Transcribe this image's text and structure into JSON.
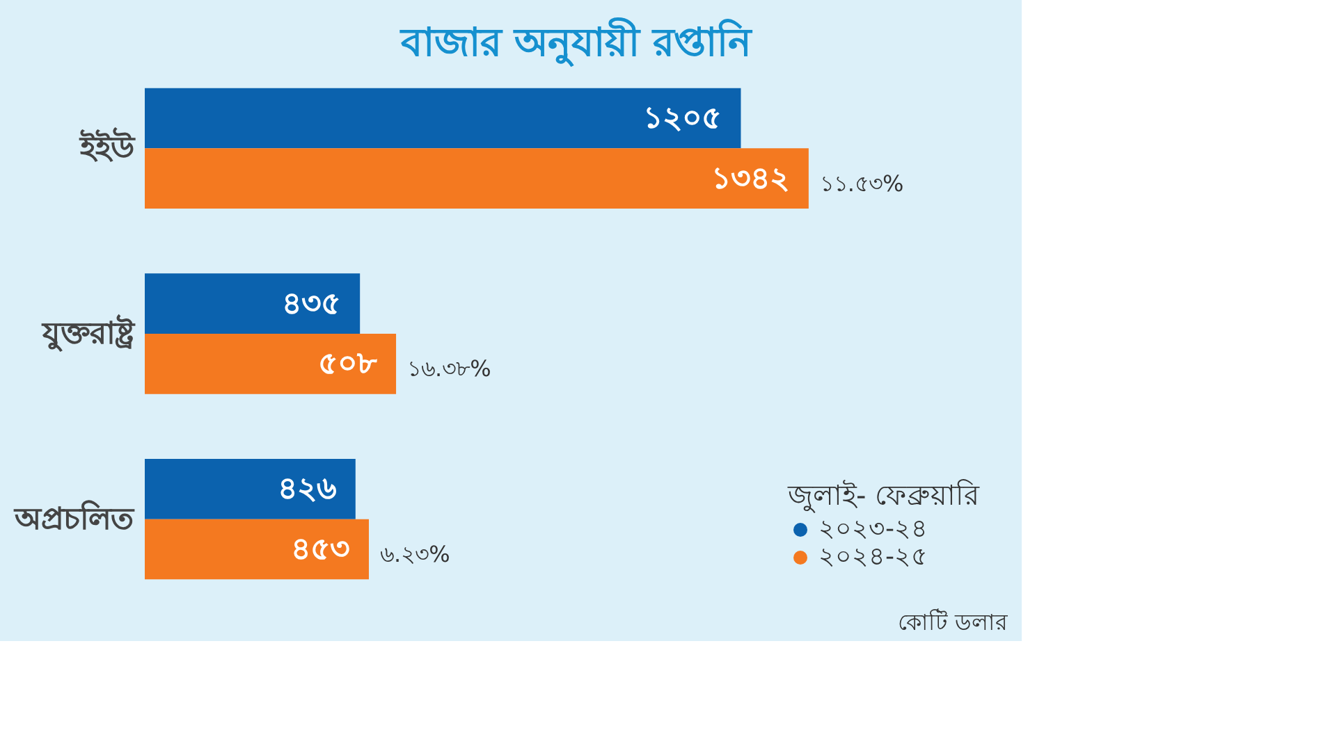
{
  "chart_data": {
    "type": "bar",
    "orientation": "horizontal",
    "title": "বাজার অনুযায়ী রপ্তানি",
    "categories": [
      "ইইউ",
      "যুক্তরাষ্ট্র",
      "অপ্রচলিত"
    ],
    "series": [
      {
        "name": "২০২৩-২৪",
        "color": "#0b62ae",
        "values": [
          1205,
          435,
          426
        ],
        "value_labels": [
          "১২০৫",
          "৪৩৫",
          "৪২৬"
        ]
      },
      {
        "name": "২০২৪-২৫",
        "color": "#f47920",
        "values": [
          1342,
          508,
          453
        ],
        "value_labels": [
          "১৩৪২",
          "৫০৮",
          "৪৫৩"
        ]
      }
    ],
    "legend_title": "জুলাই- ফেব্রুয়ারি",
    "legend": "bottom right",
    "grid": false,
    "annotations": [
      {
        "text": "১১.৫৩%",
        "x": 1342,
        "y": "ইইউ"
      },
      {
        "text": "১৬.৩৮%",
        "x": 508,
        "y": "যুক্তরাষ্ট্র"
      },
      {
        "text": "৬.২৩%",
        "x": 453,
        "y": "অপ্রচলিত"
      },
      "কোটি ডলার"
    ]
  }
}
